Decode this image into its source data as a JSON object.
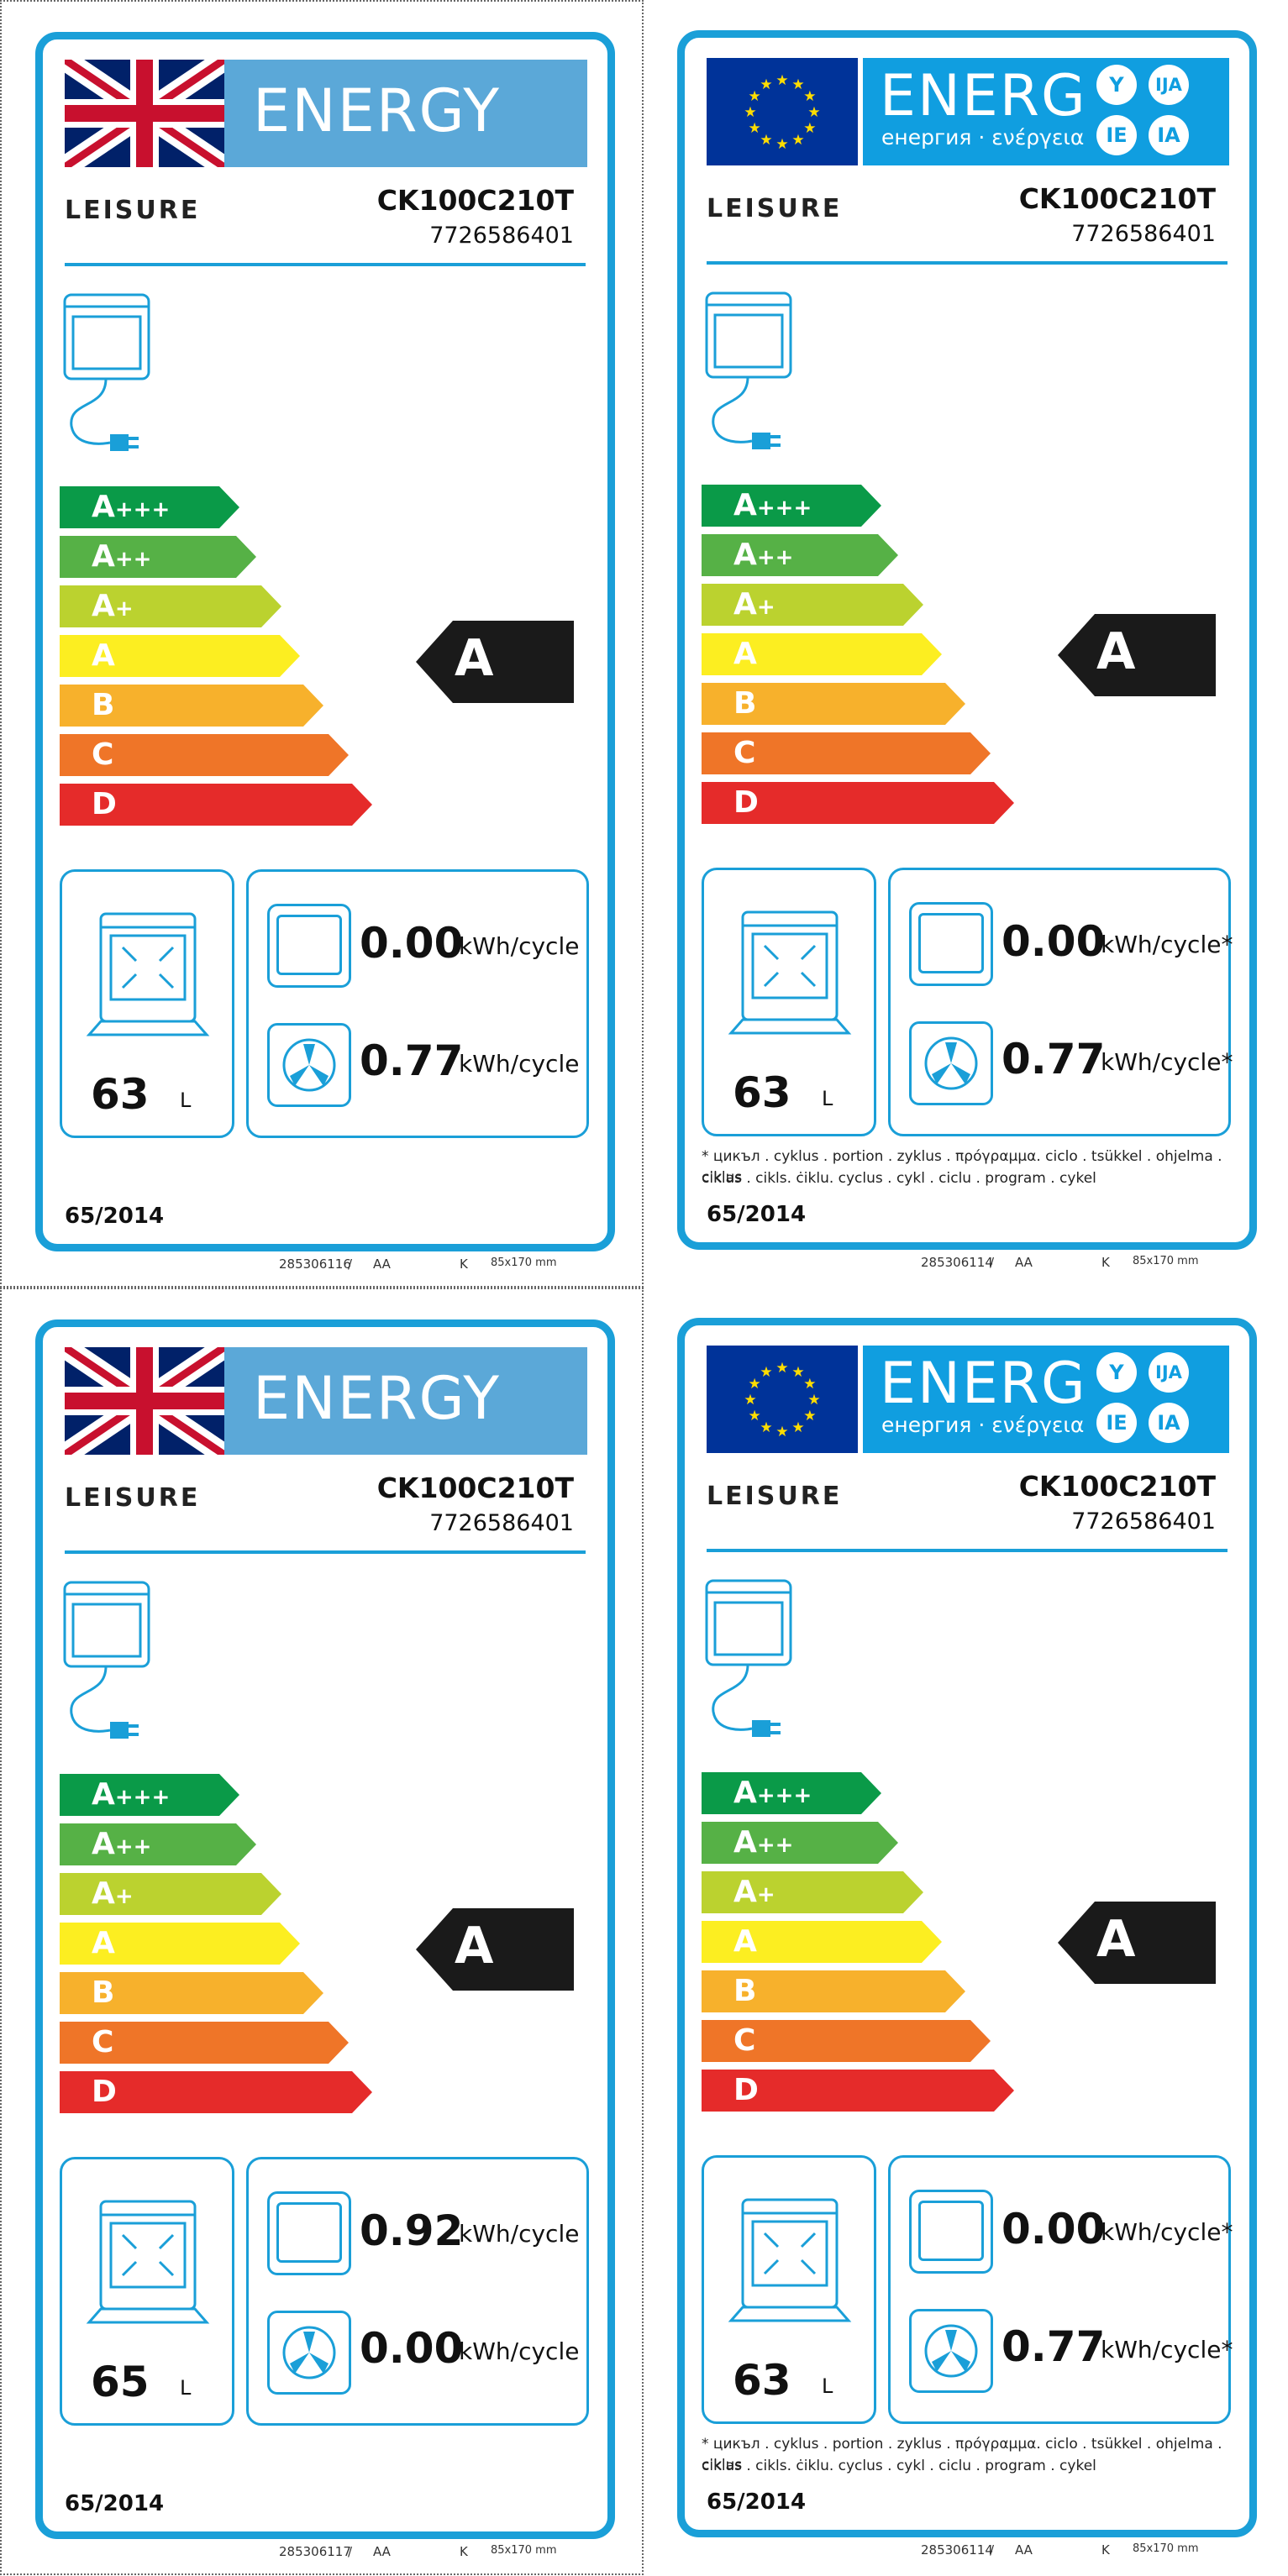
{
  "colors": {
    "frame": "#1a9fd8",
    "a3": "#0a9a48",
    "a2": "#56b146",
    "a1": "#bbd22f",
    "a": "#fcee21",
    "b": "#f7b12c",
    "c": "#ef7528",
    "d": "#e52b2a",
    "rating_arrow": "#1a1a1a"
  },
  "labels": [
    {
      "variant": "uk",
      "header_word": "ENERGY",
      "brand": "LEISURE",
      "model": "CK100C210T",
      "product_code": "7726586401",
      "classes": [
        {
          "main": "A",
          "plus": "+++"
        },
        {
          "main": "A",
          "plus": "++"
        },
        {
          "main": "A",
          "plus": "+"
        },
        {
          "main": "A",
          "plus": ""
        },
        {
          "main": "B",
          "plus": ""
        },
        {
          "main": "C",
          "plus": ""
        },
        {
          "main": "D",
          "plus": ""
        }
      ],
      "rating": "A",
      "volume": "63",
      "volume_unit": "L",
      "conventional_value": "0.00",
      "conventional_unit": "kWh/cycle",
      "fan_value": "0.77",
      "fan_unit": "kWh/cycle",
      "footnote_1": "",
      "footnote_2": "",
      "regulation": "65/2014",
      "print_code": "285306116",
      "print_sep": "/",
      "print_aa": "AA",
      "print_k": "K",
      "print_size": "85x170 mm"
    },
    {
      "variant": "eu",
      "header_word": "ENERG",
      "header_sub": "енергия · ενέργεια",
      "badges": [
        "Y",
        "IJA",
        "IE",
        "IA"
      ],
      "brand": "LEISURE",
      "model": "CK100C210T",
      "product_code": "7726586401",
      "classes": [
        {
          "main": "A",
          "plus": "+++"
        },
        {
          "main": "A",
          "plus": "++"
        },
        {
          "main": "A",
          "plus": "+"
        },
        {
          "main": "A",
          "plus": ""
        },
        {
          "main": "B",
          "plus": ""
        },
        {
          "main": "C",
          "plus": ""
        },
        {
          "main": "D",
          "plus": ""
        }
      ],
      "rating": "A",
      "volume": "63",
      "volume_unit": "L",
      "conventional_value": "0.00",
      "conventional_unit": "kWh/cycle*",
      "fan_value": "0.77",
      "fan_unit": "kWh/cycle*",
      "footnote_1": "* цикъл . cyklus . portion . zyklus . πρόγραμμα. ciclo . tsükkel . ohjelma . ciklus",
      "footnote_2": "ciklas . cikls. ċiklu. cyclus . cykl . ciclu . program . cykel",
      "regulation": "65/2014",
      "print_code": "285306114",
      "print_sep": "/",
      "print_aa": "AA",
      "print_k": "K",
      "print_size": "85x170 mm"
    },
    {
      "variant": "uk",
      "header_word": "ENERGY",
      "brand": "LEISURE",
      "model": "CK100C210T",
      "product_code": "7726586401",
      "classes": [
        {
          "main": "A",
          "plus": "+++"
        },
        {
          "main": "A",
          "plus": "++"
        },
        {
          "main": "A",
          "plus": "+"
        },
        {
          "main": "A",
          "plus": ""
        },
        {
          "main": "B",
          "plus": ""
        },
        {
          "main": "C",
          "plus": ""
        },
        {
          "main": "D",
          "plus": ""
        }
      ],
      "rating": "A",
      "volume": "65",
      "volume_unit": "L",
      "conventional_value": "0.92",
      "conventional_unit": "kWh/cycle",
      "fan_value": "0.00",
      "fan_unit": "kWh/cycle",
      "footnote_1": "",
      "footnote_2": "",
      "regulation": "65/2014",
      "print_code": "285306117",
      "print_sep": "/",
      "print_aa": "AA",
      "print_k": "K",
      "print_size": "85x170 mm"
    },
    {
      "variant": "eu",
      "header_word": "ENERG",
      "header_sub": "енергия · ενέργεια",
      "badges": [
        "Y",
        "IJA",
        "IE",
        "IA"
      ],
      "brand": "LEISURE",
      "model": "CK100C210T",
      "product_code": "7726586401",
      "classes": [
        {
          "main": "A",
          "plus": "+++"
        },
        {
          "main": "A",
          "plus": "++"
        },
        {
          "main": "A",
          "plus": "+"
        },
        {
          "main": "A",
          "plus": ""
        },
        {
          "main": "B",
          "plus": ""
        },
        {
          "main": "C",
          "plus": ""
        },
        {
          "main": "D",
          "plus": ""
        }
      ],
      "rating": "A",
      "volume": "63",
      "volume_unit": "L",
      "conventional_value": "0.00",
      "conventional_unit": "kWh/cycle*",
      "fan_value": "0.77",
      "fan_unit": "kWh/cycle*",
      "footnote_1": "* цикъл . cyklus . portion . zyklus . πρόγραμμα. ciclo . tsükkel . ohjelma . ciklus",
      "footnote_2": "ciklas . cikls. ċiklu. cyclus . cykl . ciclu . program . cykel",
      "regulation": "65/2014",
      "print_code": "285306114",
      "print_sep": "/",
      "print_aa": "AA",
      "print_k": "K",
      "print_size": "85x170 mm"
    }
  ]
}
